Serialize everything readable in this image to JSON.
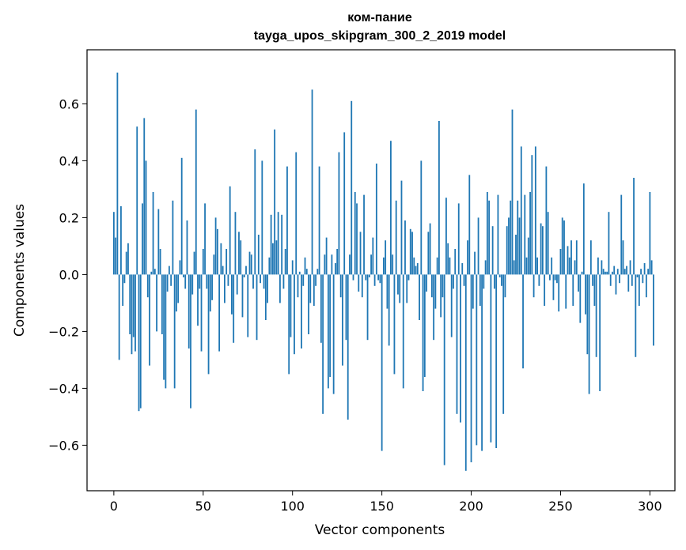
{
  "chart_data": {
    "type": "bar",
    "title_line1": "ком-пание",
    "title_line2": "tayga_upos_skipgram_300_2_2019 model",
    "xlabel": "Vector components",
    "ylabel": "Components values",
    "xlim": [
      -15,
      314
    ],
    "ylim": [
      -0.76,
      0.79
    ],
    "xticks": [
      0,
      50,
      100,
      150,
      200,
      250,
      300
    ],
    "yticks": [
      -0.6,
      -0.4,
      -0.2,
      0.0,
      0.2,
      0.4,
      0.6
    ],
    "ytick_labels": [
      "−0.6",
      "−0.4",
      "−0.2",
      "0.0",
      "0.2",
      "0.4",
      "0.6"
    ],
    "bar_color": "#1f77b4",
    "grid": false,
    "values": [
      0.22,
      0.13,
      0.71,
      -0.3,
      0.24,
      -0.11,
      -0.03,
      0.08,
      0.11,
      -0.21,
      -0.28,
      -0.22,
      -0.27,
      0.52,
      -0.48,
      -0.47,
      0.25,
      0.55,
      0.4,
      -0.08,
      -0.32,
      0.01,
      0.29,
      0.02,
      -0.2,
      0.23,
      0.09,
      -0.21,
      -0.37,
      -0.4,
      -0.06,
      0.03,
      -0.04,
      0.26,
      -0.4,
      -0.13,
      -0.1,
      0.05,
      0.41,
      -0.01,
      -0.05,
      0.19,
      -0.26,
      -0.47,
      -0.07,
      0.08,
      0.58,
      -0.18,
      -0.05,
      -0.27,
      0.09,
      0.25,
      -0.05,
      -0.35,
      -0.13,
      -0.09,
      0.07,
      0.2,
      0.16,
      -0.27,
      0.11,
      0.03,
      -0.1,
      0.09,
      -0.04,
      0.31,
      -0.14,
      -0.24,
      0.22,
      -0.07,
      0.15,
      0.12,
      -0.15,
      -0.01,
      0.03,
      -0.22,
      0.08,
      0.07,
      -0.05,
      0.44,
      -0.23,
      0.14,
      -0.03,
      0.4,
      -0.05,
      -0.16,
      -0.1,
      0.06,
      0.21,
      0.11,
      0.51,
      0.12,
      0.22,
      -0.1,
      0.21,
      -0.05,
      0.09,
      0.38,
      -0.35,
      -0.22,
      0.05,
      -0.28,
      0.43,
      -0.08,
      0.01,
      -0.26,
      -0.04,
      0.06,
      0.02,
      -0.21,
      -0.1,
      0.65,
      -0.11,
      -0.04,
      0.02,
      0.38,
      -0.24,
      -0.49,
      0.07,
      0.13,
      -0.4,
      -0.36,
      0.07,
      -0.42,
      0.04,
      0.09,
      0.43,
      -0.08,
      -0.32,
      0.5,
      -0.23,
      -0.51,
      0.07,
      0.61,
      -0.02,
      0.29,
      0.25,
      -0.06,
      0.15,
      -0.08,
      0.28,
      -0.02,
      -0.23,
      -0.01,
      0.07,
      0.13,
      -0.04,
      0.39,
      -0.02,
      -0.03,
      -0.62,
      0.06,
      0.12,
      -0.12,
      -0.25,
      0.47,
      0.07,
      -0.35,
      0.26,
      -0.07,
      -0.1,
      0.33,
      -0.4,
      0.19,
      -0.1,
      -0.02,
      0.16,
      0.15,
      0.06,
      0.03,
      0.04,
      -0.16,
      0.4,
      -0.41,
      -0.36,
      -0.06,
      0.15,
      0.18,
      -0.08,
      -0.23,
      -0.12,
      0.06,
      0.54,
      -0.15,
      -0.08,
      -0.67,
      0.27,
      0.11,
      0.06,
      -0.22,
      -0.05,
      0.09,
      -0.49,
      0.25,
      -0.52,
      0.04,
      -0.04,
      -0.69,
      0.12,
      0.35,
      -0.66,
      -0.12,
      0.08,
      -0.6,
      0.2,
      -0.11,
      -0.62,
      -0.05,
      0.05,
      0.29,
      0.26,
      -0.59,
      0.17,
      -0.05,
      -0.61,
      0.28,
      -0.01,
      -0.04,
      -0.49,
      -0.08,
      0.17,
      0.2,
      0.26,
      0.58,
      0.05,
      0.14,
      0.26,
      0.2,
      0.45,
      -0.33,
      0.28,
      0.06,
      0.13,
      0.29,
      0.42,
      -0.08,
      0.45,
      0.06,
      -0.04,
      0.18,
      0.17,
      -0.11,
      0.38,
      0.22,
      -0.02,
      0.06,
      -0.09,
      -0.02,
      -0.03,
      -0.13,
      0.09,
      0.2,
      0.19,
      -0.12,
      0.1,
      0.06,
      0.12,
      -0.11,
      0.05,
      0.12,
      -0.06,
      -0.17,
      0.01,
      0.32,
      -0.14,
      -0.28,
      -0.42,
      0.12,
      -0.04,
      -0.11,
      -0.29,
      0.06,
      -0.41,
      0.05,
      0.02,
      0.01,
      0.01,
      0.22,
      -0.04,
      0.01,
      0.03,
      -0.07,
      0.02,
      -0.03,
      0.28,
      0.12,
      0.02,
      0.03,
      -0.06,
      0.05,
      -0.04,
      0.34,
      -0.29,
      -0.01,
      -0.11,
      0.02,
      -0.03,
      0.04,
      -0.08,
      0.02,
      0.29,
      0.05,
      -0.25
    ]
  }
}
